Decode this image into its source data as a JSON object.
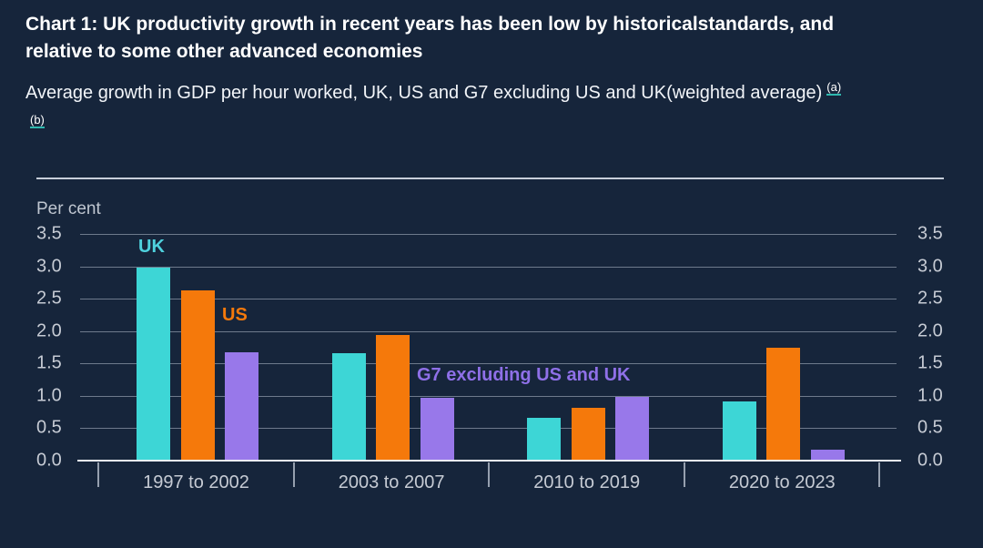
{
  "page": {
    "background_color": "#16253B",
    "accent_teal": "#2FB9AF"
  },
  "header": {
    "title": "Chart 1: UK productivity growth in recent years has been low by historicalstandards, and relative to some other advanced economies",
    "subtitle": "Average growth in GDP per hour worked, UK, US and G7 excluding US and UK(weighted average)",
    "footnote_links": [
      "(a)",
      "(b)"
    ]
  },
  "chart_data": {
    "type": "bar",
    "title": "",
    "unit_label": "Per cent",
    "xlabel": "",
    "ylabel": "Per cent",
    "categories": [
      "1997 to 2002",
      "2003 to 2007",
      "2010 to 2019",
      "2020 to 2023"
    ],
    "series": [
      {
        "name": "UK",
        "color": "#3DD6D6",
        "label_color": "#4FD2DE",
        "values": [
          2.97,
          1.64,
          0.65,
          0.9
        ]
      },
      {
        "name": "US",
        "color": "#F5790B",
        "label_color": "#F5790B",
        "values": [
          2.61,
          1.92,
          0.8,
          1.73
        ]
      },
      {
        "name": "G7 excluding US and UK",
        "color": "#9878EA",
        "label_color": "#8F70E8",
        "values": [
          1.66,
          0.96,
          0.97,
          0.15
        ]
      }
    ],
    "ylim": [
      0,
      3.5
    ],
    "yticks": [
      0.0,
      0.5,
      1.0,
      1.5,
      2.0,
      2.5,
      3.0,
      3.5
    ],
    "ytick_labels_both_sides": true,
    "grid": true,
    "legend_position": "inline-series-labels"
  }
}
